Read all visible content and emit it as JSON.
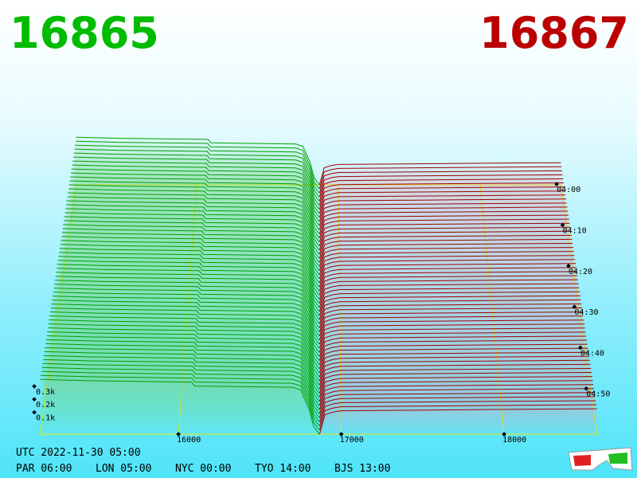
{
  "header": {
    "bid": "16865",
    "ask": "16867"
  },
  "chart_data": {
    "type": "depth3d",
    "xlim": [
      15150,
      18570
    ],
    "xticks": [
      16000,
      17000,
      18000
    ],
    "tlim": [
      239,
      300
    ],
    "tticks": [
      {
        "value": 240,
        "label": "04:00"
      },
      {
        "value": 250,
        "label": "04:10"
      },
      {
        "value": 260,
        "label": "04:20"
      },
      {
        "value": 270,
        "label": "04:30"
      },
      {
        "value": 280,
        "label": "04:40"
      },
      {
        "value": 290,
        "label": "04:50"
      }
    ],
    "depth_ticks": [
      {
        "value": 100,
        "label": "0.1k"
      },
      {
        "value": 200,
        "label": "0.2k"
      },
      {
        "value": 300,
        "label": "0.3k"
      }
    ],
    "bids": {
      "color": "#00a000",
      "prices": [
        15150,
        15450,
        16080,
        16100,
        16700,
        16750,
        16800,
        16830,
        16865
      ],
      "depth": [
        420,
        410,
        400,
        370,
        360,
        340,
        200,
        60,
        0
      ]
    },
    "asks": {
      "color": "#a00000",
      "prices": [
        16867,
        16880,
        16900,
        16950,
        17000,
        18000,
        18570
      ],
      "depth": [
        0,
        60,
        150,
        170,
        180,
        190,
        195
      ]
    },
    "grid_color": "#e8e800"
  },
  "footer": {
    "utc": "UTC 2022-11-30 05:00",
    "clocks": [
      "PAR 06:00",
      "LON 05:00",
      "NYC 00:00",
      "TYO 14:00",
      "BJS 13:00"
    ]
  }
}
